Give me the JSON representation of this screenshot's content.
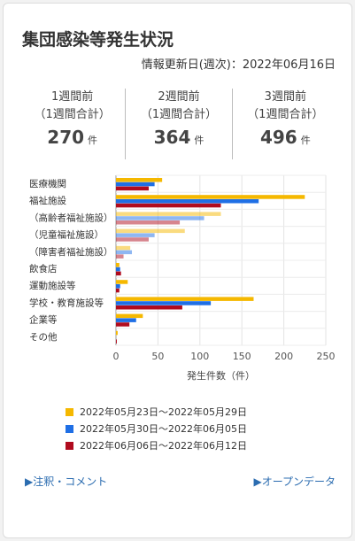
{
  "title": "集団感染等発生状況",
  "updated": "情報更新日(週次)：2022年06月16日",
  "stats": [
    {
      "label1": "1週間前",
      "label2": "（1週間合計）",
      "value": "270",
      "unit": "件"
    },
    {
      "label1": "2週間前",
      "label2": "（1週間合計）",
      "value": "364",
      "unit": "件"
    },
    {
      "label1": "3週間前",
      "label2": "（1週間合計）",
      "value": "496",
      "unit": "件"
    }
  ],
  "chart_data": {
    "type": "bar",
    "orientation": "horizontal",
    "categories": [
      "医療機関",
      "福祉施設",
      "（高齢者福祉施設）",
      "（児童福祉施設）",
      "（障害者福祉施設）",
      "飲食店",
      "運動施設等",
      "学校・教育施設等",
      "企業等",
      "その他"
    ],
    "series": [
      {
        "name": "2022年05月23日～2022年05月29日",
        "color": "#f5b800",
        "values": [
          55,
          225,
          125,
          82,
          17,
          4,
          14,
          164,
          32,
          2
        ]
      },
      {
        "name": "2022年05月30日～2022年06月05日",
        "color": "#1f6fe5",
        "values": [
          46,
          170,
          105,
          46,
          19,
          5,
          5,
          113,
          24,
          0
        ]
      },
      {
        "name": "2022年06月06日～2022年06月12日",
        "color": "#b00b1e",
        "values": [
          39,
          125,
          76,
          39,
          9,
          6,
          4,
          79,
          16,
          1
        ]
      }
    ],
    "faded_categories": [
      2,
      3,
      4
    ],
    "xlabel": "発生件数（件）",
    "xlim": [
      0,
      250
    ],
    "xticks": [
      "0",
      "50",
      "100",
      "150",
      "200",
      "250"
    ],
    "grid": "vertical",
    "legend_position": "bottom"
  },
  "links": {
    "left": "▶注釈・コメント",
    "right": "▶オープンデータ"
  }
}
